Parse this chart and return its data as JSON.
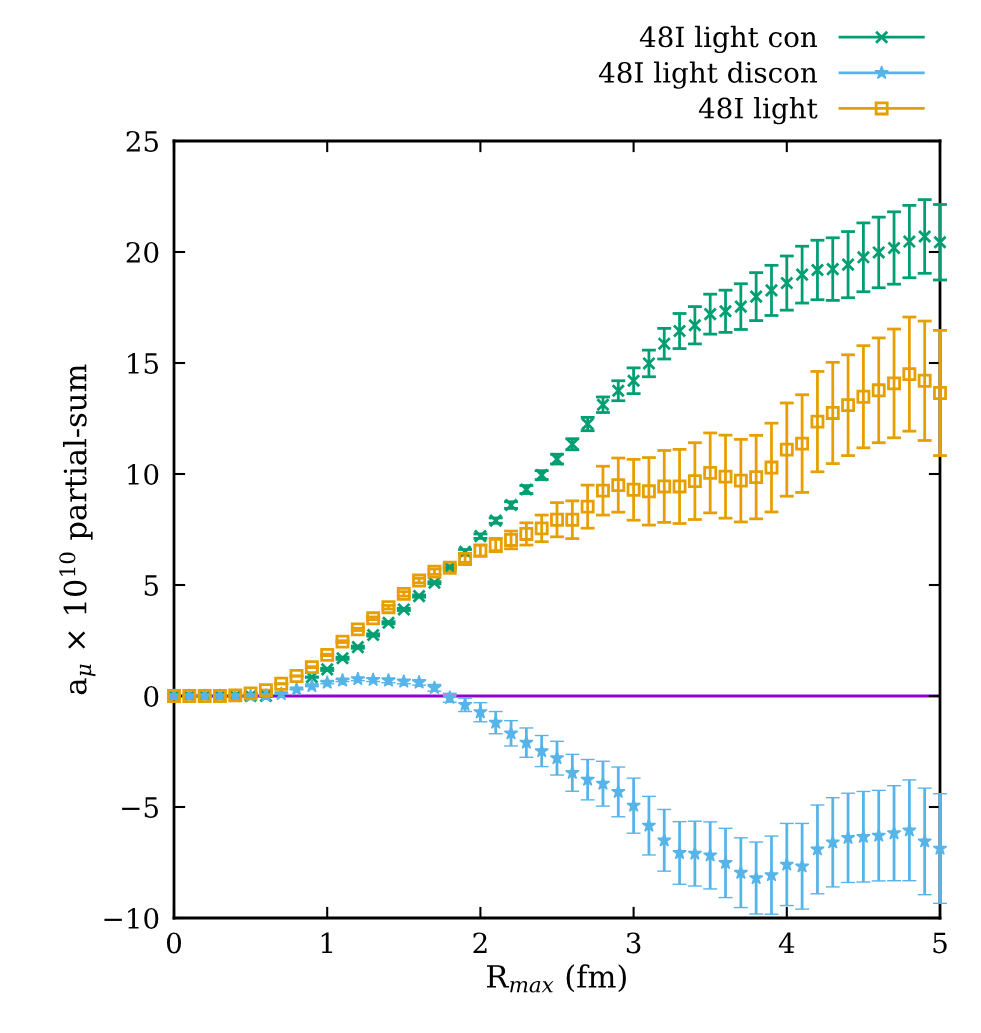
{
  "chart_data": {
    "type": "scatter",
    "xlabel": "R$_{max}$ (fm)",
    "ylabel": "a$_{μ}$ × 10$^{10}$ partial-sum",
    "x": [
      0,
      0.1,
      0.2,
      0.3,
      0.4,
      0.5,
      0.6,
      0.7,
      0.8,
      0.9,
      1.0,
      1.1,
      1.2,
      1.3,
      1.4,
      1.5,
      1.6,
      1.7,
      1.8,
      1.9,
      2.0,
      2.1,
      2.2,
      2.3,
      2.4,
      2.5,
      2.6,
      2.7,
      2.8,
      2.9,
      3.0,
      3.1,
      3.2,
      3.3,
      3.4,
      3.5,
      3.6,
      3.7,
      3.8,
      3.9,
      4.0,
      4.1,
      4.2,
      4.3,
      4.4,
      4.5,
      4.6,
      4.7,
      4.8,
      4.9,
      5.0
    ],
    "xlim": [
      0,
      5
    ],
    "xticks": [
      0,
      1,
      2,
      3,
      4,
      5
    ],
    "ylim": [
      -10,
      25
    ],
    "yticks": [
      {
        "value": -10,
        "label": "−10"
      },
      {
        "value": -5,
        "label": "−5"
      },
      0,
      5,
      10,
      15,
      20,
      25
    ],
    "grid": false,
    "legend": "top right",
    "series": [
      {
        "name": "48I light con",
        "color": "#009e73",
        "marker": "cross",
        "values": [
          0,
          0,
          0,
          0,
          0,
          0,
          0,
          null,
          null,
          0.85,
          1.2,
          1.7,
          2.2,
          2.75,
          3.3,
          3.9,
          4.5,
          5.1,
          5.8,
          6.5,
          7.2,
          7.9,
          8.6,
          9.3,
          9.95,
          10.67,
          11.34,
          12.25,
          13.12,
          13.75,
          14.2,
          14.98,
          15.87,
          16.44,
          16.7,
          17.2,
          17.33,
          17.54,
          17.99,
          18.27,
          18.6,
          18.98,
          19.19,
          19.23,
          19.43,
          19.76,
          19.98,
          20.18,
          20.47,
          20.7,
          20.44
        ],
        "errors": [
          0,
          0,
          0,
          0,
          0,
          0,
          0,
          null,
          null,
          0,
          0.05,
          0.05,
          0.05,
          0.05,
          0.05,
          0.05,
          0.05,
          0.05,
          0.05,
          0.1,
          0.1,
          0.12,
          0.15,
          0.18,
          0.2,
          0.22,
          0.25,
          0.3,
          0.35,
          0.45,
          0.58,
          0.6,
          0.69,
          0.79,
          0.84,
          0.9,
          0.95,
          1.03,
          1.08,
          1.13,
          1.22,
          1.28,
          1.34,
          1.41,
          1.49,
          1.55,
          1.59,
          1.63,
          1.63,
          1.66,
          1.7
        ]
      },
      {
        "name": "48I light discon",
        "color": "#56b4e9",
        "marker": "star",
        "values": [
          0,
          0,
          0,
          0,
          0,
          0,
          0.02,
          0.09,
          0.3,
          0.45,
          0.6,
          0.7,
          0.76,
          0.73,
          0.7,
          0.65,
          0.61,
          0.37,
          -0.08,
          -0.4,
          -0.73,
          -1.2,
          -1.68,
          -2.1,
          -2.48,
          -2.8,
          -3.46,
          -3.77,
          -3.95,
          -4.32,
          -4.94,
          -5.84,
          -6.5,
          -7.07,
          -7.1,
          -7.18,
          -7.52,
          -7.96,
          -8.2,
          -8.07,
          -7.59,
          -7.67,
          -6.91,
          -6.59,
          -6.39,
          -6.34,
          -6.29,
          -6.18,
          -6.05,
          -6.55,
          -6.87
        ],
        "errors": [
          0,
          0,
          0,
          0,
          0,
          0,
          0,
          0,
          0.02,
          0.03,
          0.05,
          0.05,
          0.07,
          0.08,
          0.1,
          0.1,
          0.12,
          0.15,
          0.2,
          0.3,
          0.43,
          0.5,
          0.57,
          0.66,
          0.7,
          0.76,
          0.83,
          0.91,
          1.01,
          1.12,
          1.24,
          1.32,
          1.39,
          1.41,
          1.46,
          1.51,
          1.56,
          1.57,
          1.62,
          1.76,
          1.85,
          1.93,
          2.0,
          2.01,
          2.01,
          2.04,
          2.04,
          2.14,
          2.27,
          2.4,
          2.47
        ]
      },
      {
        "name": "48I light",
        "color": "#e69f00",
        "marker": "square",
        "values": [
          0,
          0,
          0,
          0,
          0.03,
          0.12,
          0.26,
          0.55,
          0.9,
          1.3,
          1.85,
          2.45,
          3.0,
          3.5,
          4.0,
          4.6,
          5.2,
          5.6,
          5.78,
          6.17,
          6.55,
          6.8,
          7.03,
          7.3,
          7.55,
          7.94,
          7.94,
          8.53,
          9.25,
          9.5,
          9.29,
          9.22,
          9.44,
          9.44,
          9.68,
          10.05,
          9.88,
          9.7,
          9.86,
          10.29,
          11.1,
          11.37,
          12.36,
          12.75,
          13.1,
          13.48,
          13.77,
          14.08,
          14.5,
          14.2,
          13.65
        ],
        "errors": [
          0,
          0,
          0,
          0,
          0,
          0,
          0,
          0,
          0,
          0.02,
          0.03,
          0.04,
          0.05,
          0.06,
          0.08,
          0.1,
          0.1,
          0.12,
          0.13,
          0.15,
          0.25,
          0.3,
          0.4,
          0.5,
          0.6,
          0.77,
          0.85,
          0.97,
          1.1,
          1.22,
          1.37,
          1.52,
          1.62,
          1.67,
          1.73,
          1.8,
          1.87,
          1.86,
          1.88,
          2.0,
          2.1,
          2.2,
          2.26,
          2.28,
          2.27,
          2.3,
          2.36,
          2.45,
          2.57,
          2.69,
          2.82
        ]
      }
    ],
    "ref_lines": [
      {
        "axis": "y",
        "value": 0,
        "color": "#9400d3",
        "line_style": "solid"
      }
    ]
  }
}
